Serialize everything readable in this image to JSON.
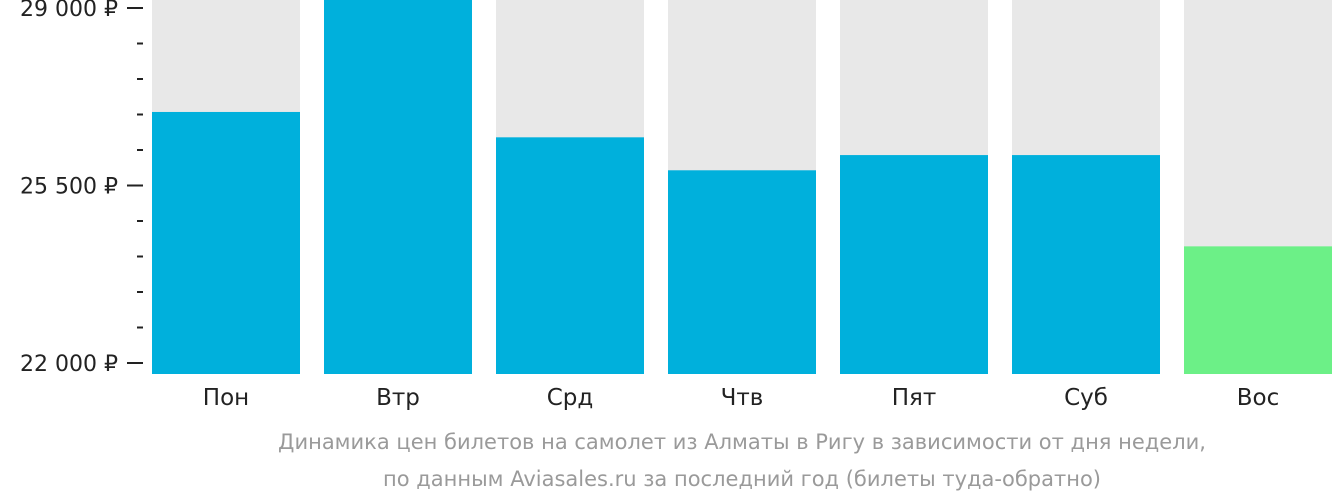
{
  "chart_data": {
    "type": "bar",
    "categories": [
      "Пон",
      "Втр",
      "Срд",
      "Чтв",
      "Пят",
      "Суб",
      "Вос"
    ],
    "values": [
      26950,
      29300,
      26450,
      25800,
      26100,
      26100,
      24300
    ],
    "ylim": [
      22000,
      29000
    ],
    "yticks": [
      {
        "value": 29000,
        "label": "29 000 ₽"
      },
      {
        "value": 25500,
        "label": "25 500 ₽"
      },
      {
        "value": 22000,
        "label": "22 000 ₽"
      }
    ],
    "minor_tick_step": 700,
    "colors": {
      "bar": "#00b0dc",
      "bar_min": "#6cf087",
      "background_column": "#e8e8e8",
      "axis": "#222222"
    },
    "highlight_index": 6
  },
  "caption": {
    "line1": "Динамика цен билетов на самолет из Алматы в Ригу в зависимости от дня недели,",
    "line2": "по данным Aviasales.ru за последний год (билеты туда-обратно)"
  }
}
